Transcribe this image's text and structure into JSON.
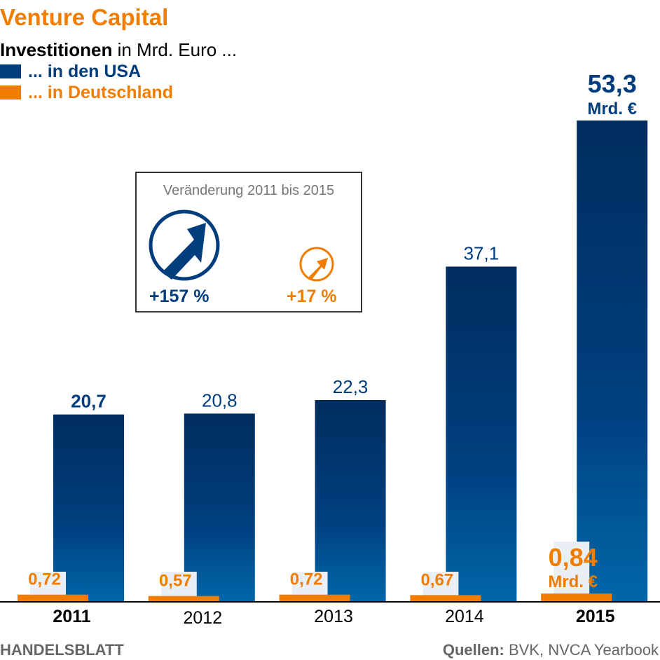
{
  "title": "Venture Capital",
  "subtitle_bold": "Investitionen",
  "subtitle_rest": " in Mrd. Euro ...",
  "legend": [
    {
      "label": "... in den USA",
      "color": "#003d7c"
    },
    {
      "label": "... in Deutschland",
      "color": "#f07d00"
    }
  ],
  "change_box": {
    "heading": "Veränderung 2011 bis 2015",
    "usa": "+157 %",
    "de": "+17 %"
  },
  "footer": {
    "brand": "HANDELSBLATT",
    "source_label": "Quellen:",
    "source": " BVK, NVCA Yearbook"
  },
  "chart_data": {
    "type": "bar",
    "title": "Venture Capital",
    "ylabel": "Investitionen in Mrd. Euro",
    "categories": [
      "2011",
      "2012",
      "2013",
      "2014",
      "2015"
    ],
    "series": [
      {
        "name": "... in den USA",
        "values": [
          20.7,
          20.8,
          22.3,
          37.1,
          53.3
        ],
        "labels": [
          "20,7",
          "20,8",
          "22,3",
          "37,1",
          "53,3"
        ],
        "color": "#003d7c"
      },
      {
        "name": "... in Deutschland",
        "values": [
          0.72,
          0.57,
          0.72,
          0.67,
          0.84
        ],
        "labels": [
          "0,72",
          "0,57",
          "0,72",
          "0,67",
          "0,84"
        ],
        "color": "#f07d00"
      }
    ],
    "unit_label": "Mrd. €",
    "highlight": [
      "2011",
      "2015"
    ],
    "ylim": [
      0,
      53.3
    ]
  }
}
